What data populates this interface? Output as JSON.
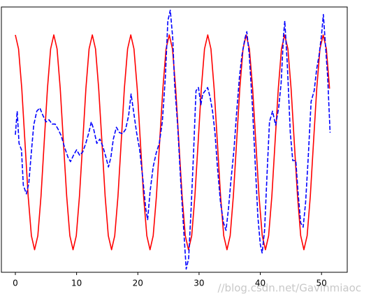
{
  "chart_data": {
    "type": "line",
    "xlim": [
      -2.28,
      54.2
    ],
    "ylim": [
      -1.21,
      1.26
    ],
    "xticks": [
      0,
      10,
      20,
      30,
      40,
      50
    ],
    "series": [
      {
        "color": "red",
        "dash": false,
        "x": [
          0,
          0.52,
          1.05,
          1.57,
          2.09,
          2.62,
          3.14,
          3.67,
          4.19,
          4.71,
          5.24,
          5.76,
          6.28,
          6.81,
          7.33,
          7.85,
          8.38,
          8.9,
          9.42,
          9.95,
          10.47,
          11.0,
          11.52,
          12.04,
          12.57,
          13.09,
          13.61,
          14.14,
          14.66,
          15.18,
          15.71,
          16.23,
          16.76,
          17.28,
          17.8,
          18.33,
          18.85,
          19.37,
          19.9,
          20.42,
          20.94,
          21.47,
          21.99,
          22.51,
          23.04,
          23.56,
          24.09,
          24.61,
          25.13,
          25.66,
          26.18,
          26.7,
          27.23,
          27.75,
          28.27,
          28.8,
          29.32,
          29.85,
          30.37,
          30.89,
          31.42,
          31.94,
          32.46,
          32.99,
          33.51,
          34.03,
          34.56,
          35.08,
          35.6,
          36.13,
          36.65,
          37.18,
          37.7,
          38.22,
          38.75,
          39.27,
          39.79,
          40.32,
          40.84,
          41.36,
          41.89,
          42.41,
          42.94,
          43.46,
          43.98,
          44.51,
          45.03,
          45.55,
          46.08,
          46.6,
          47.12,
          47.65,
          48.17,
          48.69,
          49.22,
          49.74,
          50.27,
          50.79,
          51.31
        ],
        "values": [
          1,
          0.87,
          0.5,
          0,
          -0.5,
          -0.87,
          -1,
          -0.87,
          -0.5,
          0,
          0.5,
          0.87,
          1,
          0.87,
          0.5,
          0,
          -0.5,
          -0.87,
          -1,
          -0.87,
          -0.5,
          0,
          0.5,
          0.87,
          1,
          0.87,
          0.5,
          0,
          -0.5,
          -0.87,
          -1,
          -0.87,
          -0.5,
          0,
          0.5,
          0.87,
          1,
          0.87,
          0.5,
          0,
          -0.5,
          -0.87,
          -1,
          -0.87,
          -0.5,
          0,
          0.5,
          0.87,
          1,
          0.87,
          0.5,
          0,
          -0.5,
          -0.87,
          -1,
          -0.87,
          -0.5,
          0,
          0.5,
          0.87,
          1,
          0.87,
          0.5,
          0,
          -0.5,
          -0.87,
          -1,
          -0.87,
          -0.5,
          0,
          0.5,
          0.87,
          1,
          0.87,
          0.5,
          0,
          -0.5,
          -0.87,
          -1,
          -0.87,
          -0.5,
          0,
          0.5,
          0.87,
          1,
          0.87,
          0.5,
          0,
          -0.5,
          -0.87,
          -1,
          -0.87,
          -0.5,
          0,
          0.5,
          0.87,
          1,
          0.87,
          0.5
        ]
      },
      {
        "color": "blue",
        "dash": true,
        "x": [
          0,
          0.3,
          0.6,
          1,
          1.3,
          1.8,
          2.2,
          2.6,
          3,
          3.5,
          4,
          4.5,
          5,
          5.5,
          6,
          6.5,
          7,
          7.5,
          8,
          8.6,
          9,
          9.5,
          10,
          10.5,
          11,
          11.5,
          12,
          12.4,
          12.8,
          13.3,
          13.8,
          14.3,
          14.8,
          15.2,
          15.6,
          16,
          16.5,
          17,
          17.5,
          18,
          18.5,
          18.9,
          19.3,
          19.8,
          20.3,
          20.8,
          21.3,
          21.6,
          22,
          22.5,
          23,
          23.5,
          24,
          24.5,
          24.9,
          25.3,
          25.7,
          26,
          26.5,
          27,
          27.5,
          27.9,
          28.3,
          28.7,
          29.1,
          29.5,
          29.9,
          30.3,
          30.6,
          31,
          31.4,
          31.8,
          32.2,
          32.6,
          33,
          33.5,
          34,
          34.4,
          34.8,
          35.2,
          35.7,
          36.1,
          36.6,
          37,
          37.5,
          37.8,
          38.2,
          38.7,
          39.2,
          39.6,
          40,
          40.3,
          40.7,
          41.1,
          41.5,
          42,
          42.5,
          43,
          43.4,
          43.8,
          44,
          44.4,
          44.9,
          45.3,
          45.8,
          46.2,
          46.6,
          47,
          47.4,
          47.8,
          48.3,
          48.8,
          49.2,
          49.6,
          50,
          50.3,
          50.6,
          51,
          51.4
        ],
        "values": [
          0.07,
          0.29,
          -0.01,
          -0.07,
          -0.4,
          -0.48,
          -0.38,
          -0.1,
          0.16,
          0.29,
          0.32,
          0.25,
          0.19,
          0.21,
          0.17,
          0.17,
          0.12,
          0.06,
          -0.04,
          -0.14,
          -0.18,
          -0.12,
          -0.07,
          -0.12,
          -0.09,
          -0.01,
          0.09,
          0.19,
          0.12,
          -0.01,
          0.03,
          -0.04,
          -0.14,
          -0.23,
          -0.14,
          0.03,
          0.14,
          0.09,
          0.08,
          0.12,
          0.25,
          0.45,
          0.29,
          0.09,
          -0.07,
          -0.33,
          -0.62,
          -0.72,
          -0.46,
          -0.23,
          -0.1,
          -0.01,
          0.19,
          0.61,
          1.13,
          1.23,
          0.97,
          0.55,
          0.16,
          -0.36,
          -0.82,
          -1.18,
          -1.08,
          -0.62,
          -0.1,
          0.48,
          0.51,
          0.35,
          0.45,
          0.48,
          0.51,
          0.42,
          0.29,
          0.09,
          -0.23,
          -0.56,
          -0.75,
          -0.82,
          -0.62,
          -0.36,
          -0.07,
          0.25,
          0.61,
          0.81,
          0.97,
          1.03,
          0.81,
          0.35,
          -0.23,
          -0.69,
          -0.95,
          -1.03,
          -0.82,
          -0.3,
          0.19,
          0.29,
          0.16,
          0.32,
          0.55,
          1.0,
          1.13,
          0.74,
          0.09,
          -0.17,
          -0.17,
          -0.49,
          -0.75,
          -0.79,
          -0.56,
          -0.17,
          0.38,
          0.48,
          0.68,
          0.81,
          1.0,
          1.19,
          0.94,
          0.61,
          0.09
        ]
      }
    ],
    "watermark": "//blog.csdn.net/Gavinmiaoc"
  }
}
